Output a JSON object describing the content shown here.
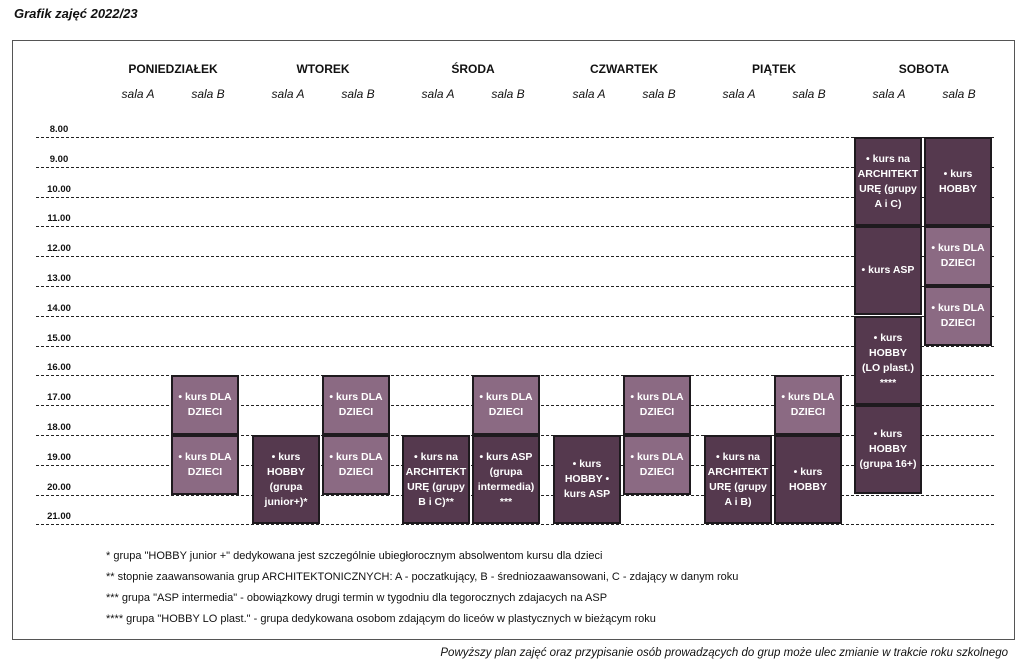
{
  "title": "Grafik zajęć  2022/23",
  "days": [
    "PONIEDZIAŁEK",
    "WTOREK",
    "ŚRODA",
    "CZWARTEK",
    "PIĄTEK",
    "SOBOTA"
  ],
  "room_a": "sala A",
  "room_b": "sala B",
  "hours": [
    "8.00",
    "9.00",
    "10.00",
    "11.00",
    "12.00",
    "13.00",
    "14.00",
    "15.00",
    "16.00",
    "17.00",
    "18.00",
    "19.00",
    "20.00",
    "21.00"
  ],
  "blocks": [
    {
      "day": 0,
      "room": 1,
      "start": 16,
      "end": 18,
      "style": "light",
      "text": "• kurs DLA DZIECI"
    },
    {
      "day": 0,
      "room": 1,
      "start": 18,
      "end": 20,
      "style": "light",
      "text": "• kurs DLA DZIECI"
    },
    {
      "day": 1,
      "room": 0,
      "start": 18,
      "end": 21,
      "style": "dark",
      "text": "• kurs HOBBY (grupa junior+)*"
    },
    {
      "day": 1,
      "room": 1,
      "start": 16,
      "end": 18,
      "style": "light",
      "text": "• kurs DLA DZIECI"
    },
    {
      "day": 1,
      "room": 1,
      "start": 18,
      "end": 20,
      "style": "light",
      "text": "• kurs DLA DZIECI"
    },
    {
      "day": 2,
      "room": 0,
      "start": 18,
      "end": 21,
      "style": "dark",
      "text": "• kurs na ARCHITEKT URĘ (grupy B i C)**"
    },
    {
      "day": 2,
      "room": 1,
      "start": 16,
      "end": 18,
      "style": "light",
      "text": "• kurs DLA DZIECI"
    },
    {
      "day": 2,
      "room": 1,
      "start": 18,
      "end": 21,
      "style": "dark",
      "text": "• kurs ASP (grupa intermedia) ***"
    },
    {
      "day": 3,
      "room": 0,
      "start": 18,
      "end": 21,
      "style": "dark",
      "text": "• kurs HOBBY • kurs ASP"
    },
    {
      "day": 3,
      "room": 1,
      "start": 16,
      "end": 18,
      "style": "light",
      "text": "• kurs DLA DZIECI"
    },
    {
      "day": 3,
      "room": 1,
      "start": 18,
      "end": 20,
      "style": "light",
      "text": "• kurs DLA DZIECI"
    },
    {
      "day": 4,
      "room": 0,
      "start": 18,
      "end": 21,
      "style": "dark",
      "text": "• kurs na ARCHITEKT URĘ (grupy A i B)"
    },
    {
      "day": 4,
      "room": 1,
      "start": 16,
      "end": 18,
      "style": "light",
      "text": "• kurs DLA DZIECI"
    },
    {
      "day": 4,
      "room": 1,
      "start": 18,
      "end": 21,
      "style": "dark",
      "text": "• kurs HOBBY"
    },
    {
      "day": 5,
      "room": 0,
      "start": 8,
      "end": 11,
      "style": "dark",
      "text": "• kurs na ARCHITEKT URĘ (grupy A i C)"
    },
    {
      "day": 5,
      "room": 0,
      "start": 11,
      "end": 14,
      "style": "dark",
      "text": "• kurs ASP"
    },
    {
      "day": 5,
      "room": 0,
      "start": 14,
      "end": 17,
      "style": "dark",
      "text": "• kurs HOBBY (LO plast.) ****"
    },
    {
      "day": 5,
      "room": 0,
      "start": 17,
      "end": 20,
      "style": "dark",
      "text": "• kurs HOBBY (grupa 16+)"
    },
    {
      "day": 5,
      "room": 1,
      "start": 8,
      "end": 11,
      "style": "dark",
      "text": "• kurs HOBBY"
    },
    {
      "day": 5,
      "room": 1,
      "start": 11,
      "end": 13,
      "style": "light",
      "text": "• kurs DLA DZIECI"
    },
    {
      "day": 5,
      "room": 1,
      "start": 13,
      "end": 15,
      "style": "light",
      "text": "• kurs DLA DZIECI"
    }
  ],
  "notes": [
    "* grupa \"HOBBY junior +\" dedykowana jest szczególnie ubiegłorocznym absolwentom kursu dla dzieci",
    "** stopnie zaawansowania grup ARCHITEKTONICZNYCH: A - poczatkujący, B - średniozaawansowani, C - zdający w danym roku",
    "*** grupa \"ASP intermedia\" - obowiązkowy drugi termin w tygodniu dla tegorocznych zdajacych na ASP",
    "**** grupa \"HOBBY LO plast.\" - grupa dedykowana osobom zdającym do liceów w plastycznych w bieżącym roku"
  ],
  "footer": "Powyższy plan zajęć oraz przypisanie osób prowadzących do grup może ulec zmianie w trakcie roku szkolnego"
}
